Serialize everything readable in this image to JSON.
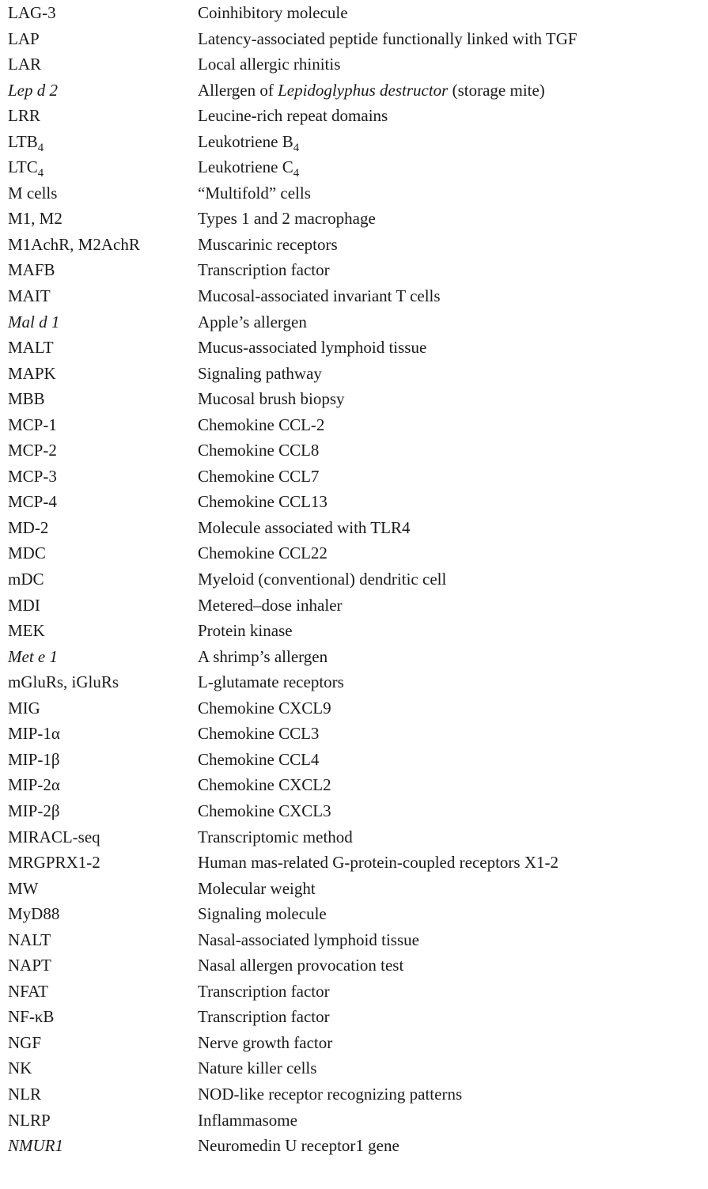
{
  "entries": [
    {
      "term": "LAG-3",
      "definition": "Coinhibitory molecule"
    },
    {
      "term": "LAP",
      "definition": "Latency-associated peptide functionally linked with TGF"
    },
    {
      "term": "LAR",
      "definition": "Local allergic rhinitis"
    },
    {
      "term": "Lep d 2",
      "term_italic": true,
      "definition_pre": "Allergen of ",
      "definition_italic": "Lepidoglyphus destructor",
      "definition_post": " (storage mite)"
    },
    {
      "term": "LRR",
      "definition": "Leucine-rich repeat domains"
    },
    {
      "term": "LTB",
      "term_sub": "4",
      "definition": "Leukotriene B",
      "definition_sub": "4"
    },
    {
      "term": "LTC",
      "term_sub": "4",
      "definition": "Leukotriene C",
      "definition_sub": "4"
    },
    {
      "term": "M cells",
      "definition": "“Multifold” cells"
    },
    {
      "term": "M1, M2",
      "definition": "Types 1 and 2 macrophage"
    },
    {
      "term": "M1AchR, M2AchR",
      "definition": "Muscarinic receptors"
    },
    {
      "term": "MAFB",
      "definition": "Transcription factor"
    },
    {
      "term": "MAIT",
      "definition": "Mucosal-associated invariant T cells"
    },
    {
      "term": "Mal d 1",
      "term_italic": true,
      "definition": "Apple’s allergen"
    },
    {
      "term": "MALT",
      "definition": "Mucus-associated lymphoid tissue"
    },
    {
      "term": "MAPK",
      "definition": "Signaling pathway"
    },
    {
      "term": "MBB",
      "definition": "Mucosal brush biopsy"
    },
    {
      "term": "MCP-1",
      "definition": "Chemokine CCL-2"
    },
    {
      "term": "MCP-2",
      "definition": "Chemokine CCL8"
    },
    {
      "term": "MCP-3",
      "definition": "Chemokine CCL7"
    },
    {
      "term": "MCP-4",
      "definition": "Chemokine CCL13"
    },
    {
      "term": "MD-2",
      "definition": "Molecule associated with TLR4"
    },
    {
      "term": "MDC",
      "definition": "Chemokine CCL22"
    },
    {
      "term": "mDC",
      "definition": "Myeloid (conventional) dendritic cell"
    },
    {
      "term": "MDI",
      "definition": "Metered–dose inhaler"
    },
    {
      "term": "MEK",
      "definition": "Protein kinase"
    },
    {
      "term": "Met e 1",
      "term_italic": true,
      "definition": "A shrimp’s allergen"
    },
    {
      "term": "mGluRs, iGluRs",
      "definition": "L-glutamate receptors"
    },
    {
      "term": "MIG",
      "definition": "Chemokine CXCL9"
    },
    {
      "term": "MIP-1α",
      "definition": "Chemokine CCL3"
    },
    {
      "term": "MIP-1β",
      "definition": "Chemokine CCL4"
    },
    {
      "term": "MIP-2α",
      "definition": "Chemokine CXCL2"
    },
    {
      "term": "MIP-2β",
      "definition": "Chemokine CXCL3"
    },
    {
      "term": "MIRACL-seq",
      "definition": "Transcriptomic method"
    },
    {
      "term": "MRGPRX1-2",
      "definition": "Human mas-related G-protein-coupled receptors X1-2"
    },
    {
      "term": "MW",
      "definition": "Molecular weight"
    },
    {
      "term": "MyD88",
      "definition": "Signaling molecule"
    },
    {
      "term": "NALT",
      "definition": "Nasal-associated lymphoid tissue"
    },
    {
      "term": "NAPT",
      "definition": "Nasal allergen provocation test"
    },
    {
      "term": "NFAT",
      "definition": "Transcription factor"
    },
    {
      "term": "NF-κB",
      "definition": "Transcription factor"
    },
    {
      "term": "NGF",
      "definition": "Nerve growth factor"
    },
    {
      "term": "NK",
      "definition": "Nature killer cells"
    },
    {
      "term": "NLR",
      "definition": "NOD-like receptor recognizing patterns"
    },
    {
      "term": "NLRP",
      "definition": "Inflammasome"
    },
    {
      "term": "NMUR1",
      "term_italic": true,
      "definition": "Neuromedin U receptor1 gene"
    }
  ]
}
